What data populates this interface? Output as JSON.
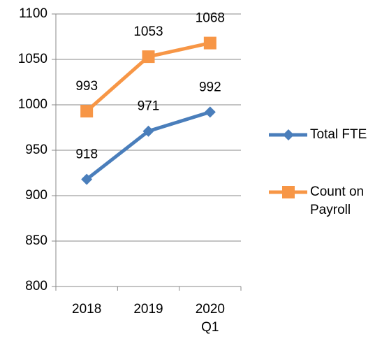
{
  "chart_data": {
    "type": "line",
    "categories": [
      "2018",
      "2019",
      "2020 Q1"
    ],
    "series": [
      {
        "name": "Total FTE",
        "color": "#4a7ebb",
        "marker": "diamond",
        "values": [
          918,
          971,
          992
        ]
      },
      {
        "name": "Count on Payroll",
        "color": "#f79646",
        "marker": "square",
        "values": [
          993,
          1053,
          1068
        ]
      }
    ],
    "ylim": [
      800,
      1100
    ],
    "yticks": [
      800,
      850,
      900,
      950,
      1000,
      1050,
      1100
    ],
    "grid": true,
    "legend": "right"
  }
}
